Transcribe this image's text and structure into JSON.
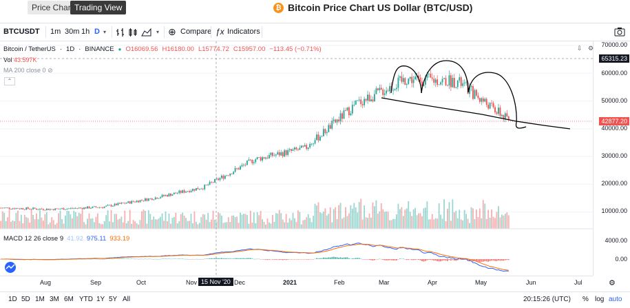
{
  "tabs": [
    {
      "label": "Price Chart"
    },
    {
      "label": "Trading View"
    }
  ],
  "page_title": "Bitcoin Price Chart US Dollar (BTC/USD)",
  "toolbar": {
    "symbol": "BTCUSDT",
    "intervals": [
      "1m",
      "30m",
      "1h",
      "D"
    ],
    "active_interval": "D",
    "compare_label": "Compare",
    "indicators_label": "Indicators"
  },
  "legend": {
    "pair": "Bitcoin / TetherUS",
    "interval": "1D",
    "exchange": "BINANCE",
    "open": "O16069.56",
    "high": "H16180.00",
    "low": "L15774.72",
    "close": "C15957.00",
    "change": "−113.45 (−0.71%)",
    "vol_label": "Vol",
    "vol_value": "43.597K",
    "ma_label": "MA 200 close 0"
  },
  "price_axis": {
    "ticks": [
      "70000.00",
      "60000.00",
      "50000.00",
      "40000.00",
      "30000.00",
      "20000.00",
      "10000.00"
    ],
    "last_price_tag": "42877.20",
    "crosshair_tag": "65315.23"
  },
  "macd": {
    "label": "MACD 12 26 close 9",
    "v1": "41.92",
    "v2": "975.11",
    "v3": "933.19",
    "ticks": [
      "4000.00",
      "0.00"
    ]
  },
  "time_axis": {
    "labels": [
      "Aug",
      "Sep",
      "Oct",
      "Nov",
      "Dec",
      "2021",
      "Feb",
      "Mar",
      "Apr",
      "May",
      "Jun",
      "Jul"
    ],
    "crosshair_date": "15 Nov '20"
  },
  "ranges": [
    "1D",
    "5D",
    "1M",
    "3M",
    "6M",
    "YTD",
    "1Y",
    "5Y",
    "All"
  ],
  "clock": "20:15:26 (UTC)",
  "scale_buttons": {
    "percent": "%",
    "log": "log",
    "auto": "auto"
  },
  "chart_data": {
    "type": "candlestick",
    "title": "Bitcoin / TetherUS",
    "ylim": [
      0,
      70000
    ],
    "x": [
      "Aug",
      "Sep",
      "Oct",
      "Nov",
      "Dec",
      "2021",
      "Feb",
      "Mar",
      "Apr",
      "May",
      "Jun"
    ],
    "close_approx": [
      11500,
      11000,
      11800,
      15000,
      19000,
      29000,
      33000,
      49000,
      58000,
      57000,
      43000
    ],
    "colors": {
      "up": "#26a69a",
      "down": "#ef5350",
      "macd": "#2962ff",
      "signal": "#ff6d00"
    }
  }
}
